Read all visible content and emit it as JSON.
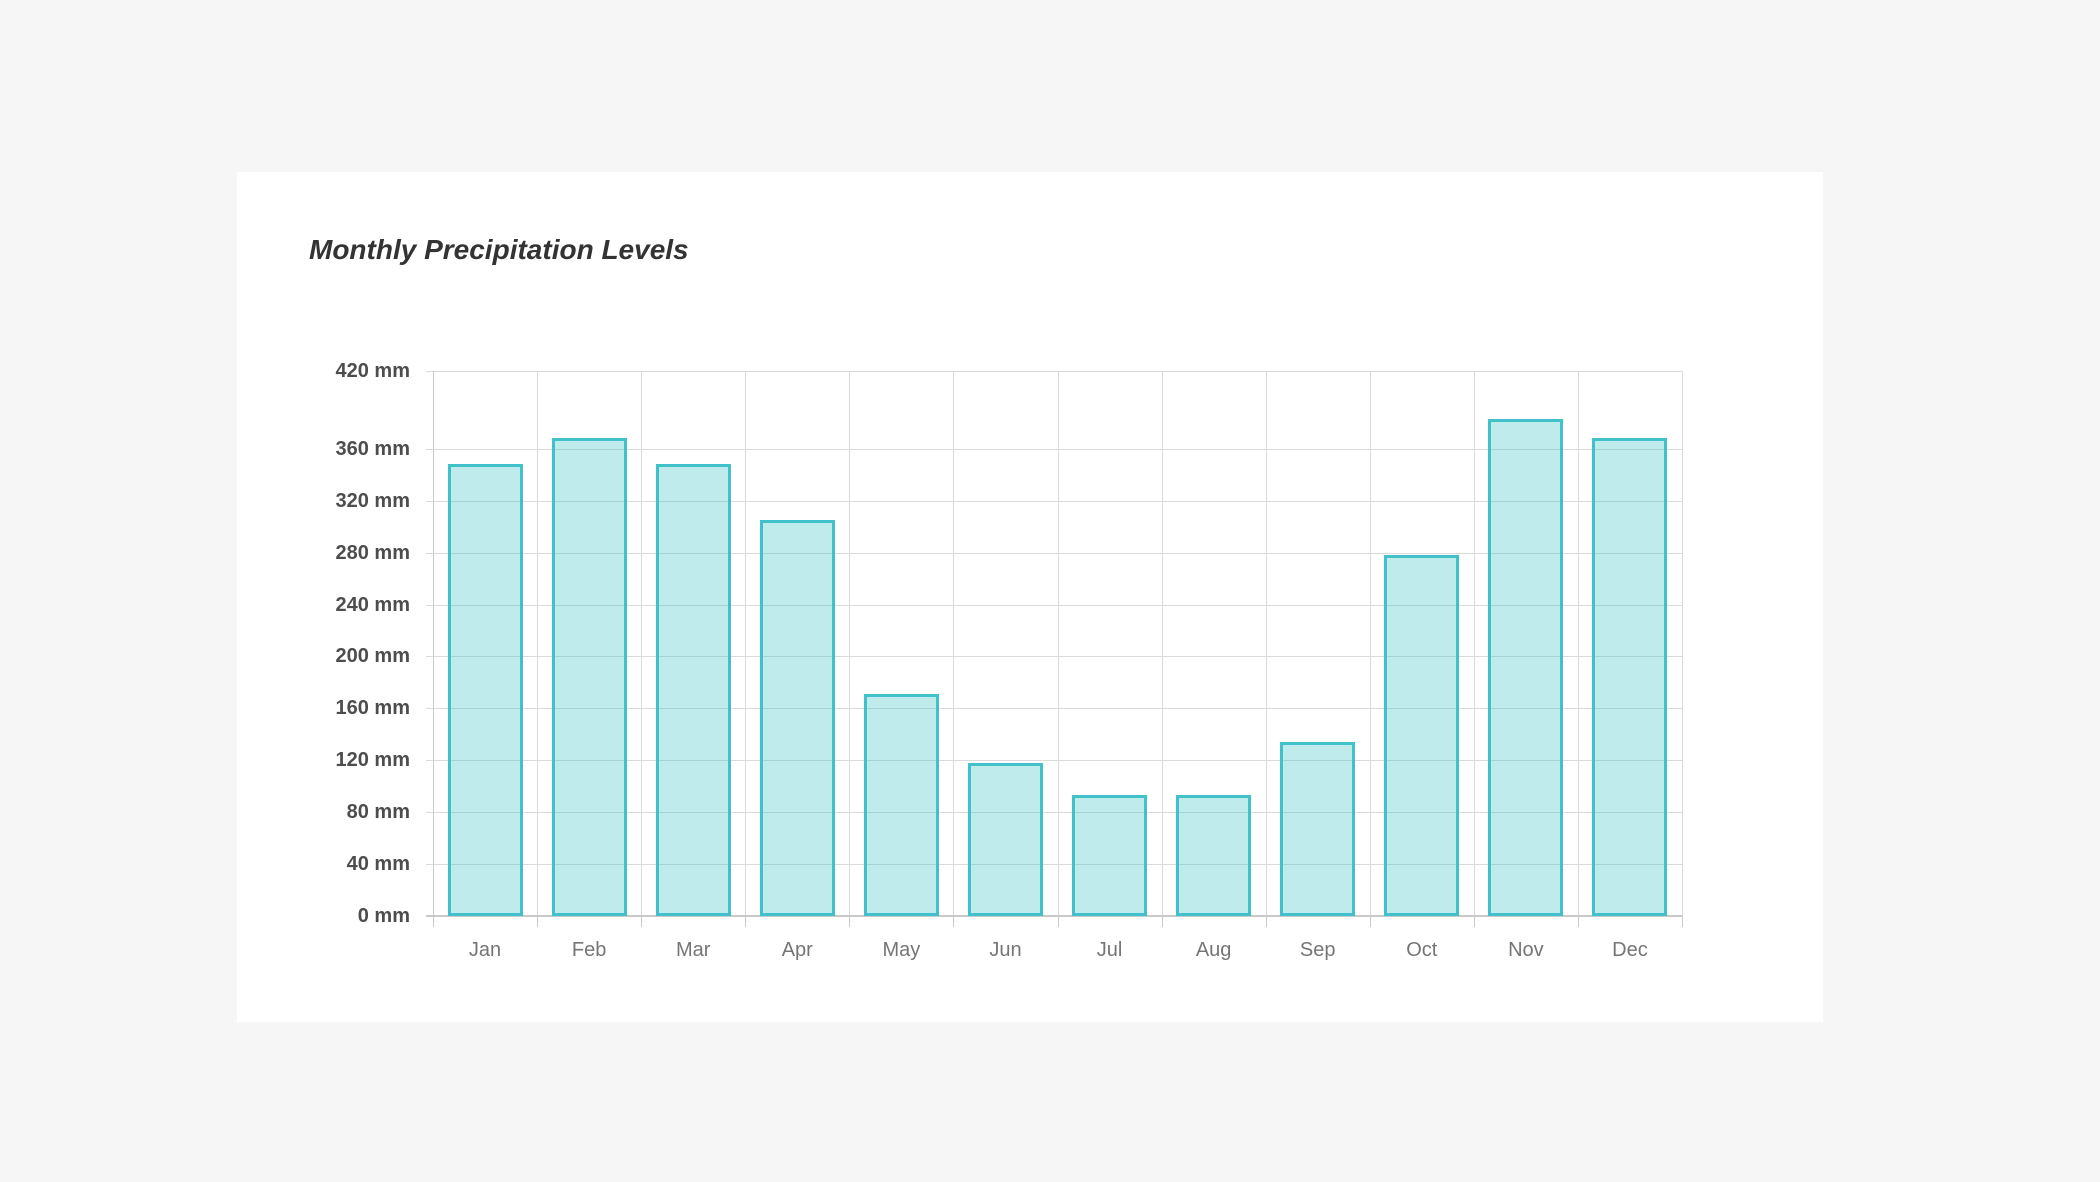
{
  "chart_data": {
    "type": "bar",
    "title": "Monthly Precipitation Levels",
    "categories": [
      "Jan",
      "Feb",
      "Mar",
      "Apr",
      "May",
      "Jun",
      "Jul",
      "Aug",
      "Sep",
      "Oct",
      "Nov",
      "Dec"
    ],
    "values": [
      348,
      368,
      348,
      305,
      171,
      118,
      93,
      93,
      134,
      278,
      383,
      368
    ],
    "unit": "mm",
    "xlabel": "",
    "ylabel": "",
    "ylim": [
      0,
      420
    ],
    "y_ticks": [
      0,
      40,
      80,
      120,
      160,
      200,
      240,
      280,
      320,
      360,
      420
    ],
    "y_tick_suffix": " mm",
    "grid": true,
    "legend": "none",
    "colors": {
      "bar_border": "#41c1c9",
      "bar_fill": "rgba(65,193,201,0.33)",
      "grid_line": "#dadada",
      "axis_line": "#c9c9c9",
      "y_label": "#4d4d4d",
      "x_label": "#757575",
      "title": "#333333",
      "page_bg": "#f6f6f6",
      "card_bg": "#ffffff"
    }
  }
}
